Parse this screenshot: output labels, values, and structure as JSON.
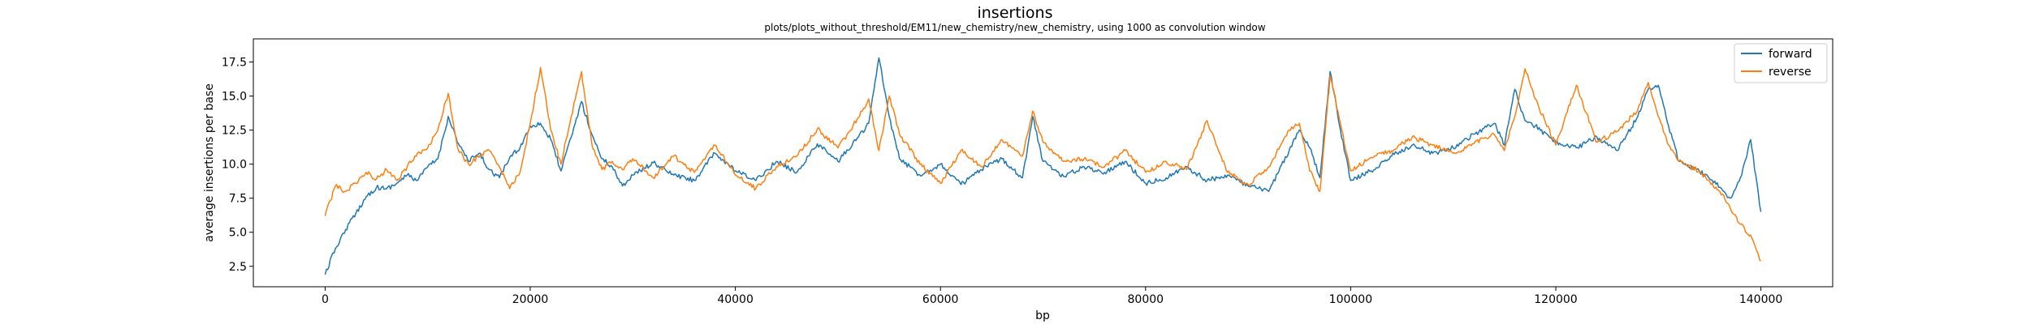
{
  "chart_data": {
    "type": "line",
    "title": "insertions",
    "subtitle": "plots/plots_without_threshold/EM11/new_chemistry/new_chemistry, using 1000 as convolution window",
    "xlabel": "bp",
    "ylabel": "average insertions per base",
    "xlim": [
      -7000,
      147000
    ],
    "ylim": [
      1.0,
      19.2
    ],
    "x_ticks": [
      0,
      20000,
      40000,
      60000,
      80000,
      100000,
      120000,
      140000
    ],
    "x_tick_labels": [
      "0",
      "20000",
      "40000",
      "60000",
      "80000",
      "100000",
      "120000",
      "140000"
    ],
    "y_ticks": [
      2.5,
      5.0,
      7.5,
      10.0,
      12.5,
      15.0,
      17.5
    ],
    "y_tick_labels": [
      "2.5",
      "5.0",
      "7.5",
      "10.0",
      "12.5",
      "15.0",
      "17.5"
    ],
    "grid": false,
    "legend_position": "top-right",
    "series": [
      {
        "name": "forward",
        "color": "#1f77b4",
        "x": [
          0,
          1000,
          2000,
          3000,
          4000,
          5000,
          6000,
          7000,
          8000,
          9000,
          10000,
          11000,
          12000,
          13000,
          14000,
          15000,
          16000,
          17000,
          18000,
          19000,
          20000,
          21000,
          22000,
          23000,
          24000,
          25000,
          26000,
          27000,
          28000,
          29000,
          30000,
          32000,
          34000,
          36000,
          38000,
          40000,
          42000,
          44000,
          46000,
          48000,
          50000,
          52000,
          53000,
          54000,
          55000,
          56000,
          58000,
          60000,
          62000,
          64000,
          66000,
          68000,
          69000,
          70000,
          72000,
          74000,
          76000,
          78000,
          80000,
          82000,
          84000,
          86000,
          88000,
          90000,
          92000,
          94000,
          95000,
          96000,
          97000,
          98000,
          99000,
          100000,
          102000,
          104000,
          106000,
          108000,
          110000,
          112000,
          114000,
          115000,
          116000,
          117000,
          118000,
          120000,
          122000,
          124000,
          126000,
          128000,
          129000,
          130000,
          131000,
          132000,
          134000,
          136000,
          137000,
          138000,
          139000,
          140000
        ],
        "values": [
          1.9,
          3.8,
          5.2,
          6.4,
          7.6,
          8.3,
          8.2,
          8.6,
          9.2,
          8.8,
          9.8,
          10.4,
          13.5,
          11.5,
          10.2,
          10.8,
          9.6,
          9.0,
          10.5,
          11.2,
          12.8,
          13.0,
          11.8,
          9.5,
          12.0,
          14.6,
          12.2,
          10.4,
          9.8,
          8.4,
          9.2,
          10.1,
          9.2,
          8.8,
          10.8,
          9.5,
          8.8,
          10.2,
          9.4,
          11.5,
          10.2,
          12.0,
          13.0,
          17.8,
          13.5,
          10.4,
          9.2,
          10.0,
          8.5,
          9.6,
          10.4,
          9.0,
          13.5,
          10.2,
          9.1,
          9.8,
          9.4,
          10.2,
          8.6,
          9.0,
          9.8,
          8.8,
          9.2,
          8.4,
          8.0,
          11.0,
          12.5,
          11.2,
          9.0,
          16.8,
          12.5,
          8.8,
          9.5,
          10.6,
          11.4,
          10.8,
          11.2,
          12.2,
          13.0,
          11.4,
          15.5,
          13.2,
          12.8,
          11.6,
          11.2,
          12.0,
          11.0,
          13.5,
          15.5,
          15.8,
          12.8,
          10.2,
          9.5,
          8.3,
          7.5,
          9.0,
          11.8,
          6.5
        ]
      },
      {
        "name": "reverse",
        "color": "#ff7f0e",
        "x": [
          0,
          1000,
          2000,
          3000,
          4000,
          5000,
          6000,
          7000,
          8000,
          9000,
          10000,
          11000,
          12000,
          13000,
          14000,
          15000,
          16000,
          17000,
          18000,
          19000,
          20000,
          21000,
          22000,
          23000,
          24000,
          25000,
          26000,
          27000,
          28000,
          29000,
          30000,
          32000,
          34000,
          36000,
          38000,
          40000,
          42000,
          44000,
          46000,
          48000,
          50000,
          52000,
          53000,
          54000,
          55000,
          56000,
          58000,
          60000,
          62000,
          64000,
          66000,
          68000,
          69000,
          70000,
          72000,
          74000,
          76000,
          78000,
          80000,
          82000,
          84000,
          86000,
          88000,
          90000,
          92000,
          94000,
          95000,
          96000,
          97000,
          98000,
          99000,
          100000,
          102000,
          104000,
          106000,
          108000,
          110000,
          112000,
          114000,
          115000,
          116000,
          117000,
          118000,
          120000,
          122000,
          124000,
          126000,
          128000,
          129000,
          130000,
          131000,
          132000,
          134000,
          136000,
          137000,
          138000,
          139000,
          140000
        ],
        "values": [
          6.2,
          8.4,
          8.0,
          8.6,
          9.4,
          8.9,
          9.6,
          8.8,
          9.8,
          10.8,
          11.2,
          12.5,
          15.2,
          11.0,
          10.0,
          10.5,
          11.0,
          9.8,
          8.2,
          9.4,
          13.0,
          17.1,
          12.5,
          10.0,
          13.5,
          16.8,
          11.5,
          9.6,
          10.2,
          9.6,
          10.4,
          9.0,
          10.6,
          9.4,
          11.4,
          9.2,
          8.2,
          9.8,
          10.6,
          12.6,
          11.2,
          13.4,
          14.8,
          11.0,
          15.0,
          12.2,
          10.0,
          8.6,
          11.0,
          9.8,
          11.8,
          10.6,
          13.9,
          11.6,
          10.2,
          10.4,
          9.8,
          11.0,
          9.4,
          10.2,
          9.6,
          13.2,
          9.4,
          8.5,
          9.8,
          12.5,
          13.0,
          9.5,
          8.0,
          16.5,
          13.0,
          9.5,
          10.5,
          11.0,
          12.0,
          11.4,
          10.8,
          11.5,
          12.2,
          11.0,
          13.5,
          17.0,
          14.8,
          11.4,
          15.8,
          11.6,
          12.4,
          14.0,
          16.0,
          13.5,
          11.4,
          10.2,
          9.5,
          8.0,
          6.8,
          5.6,
          4.8,
          2.9
        ]
      }
    ]
  }
}
